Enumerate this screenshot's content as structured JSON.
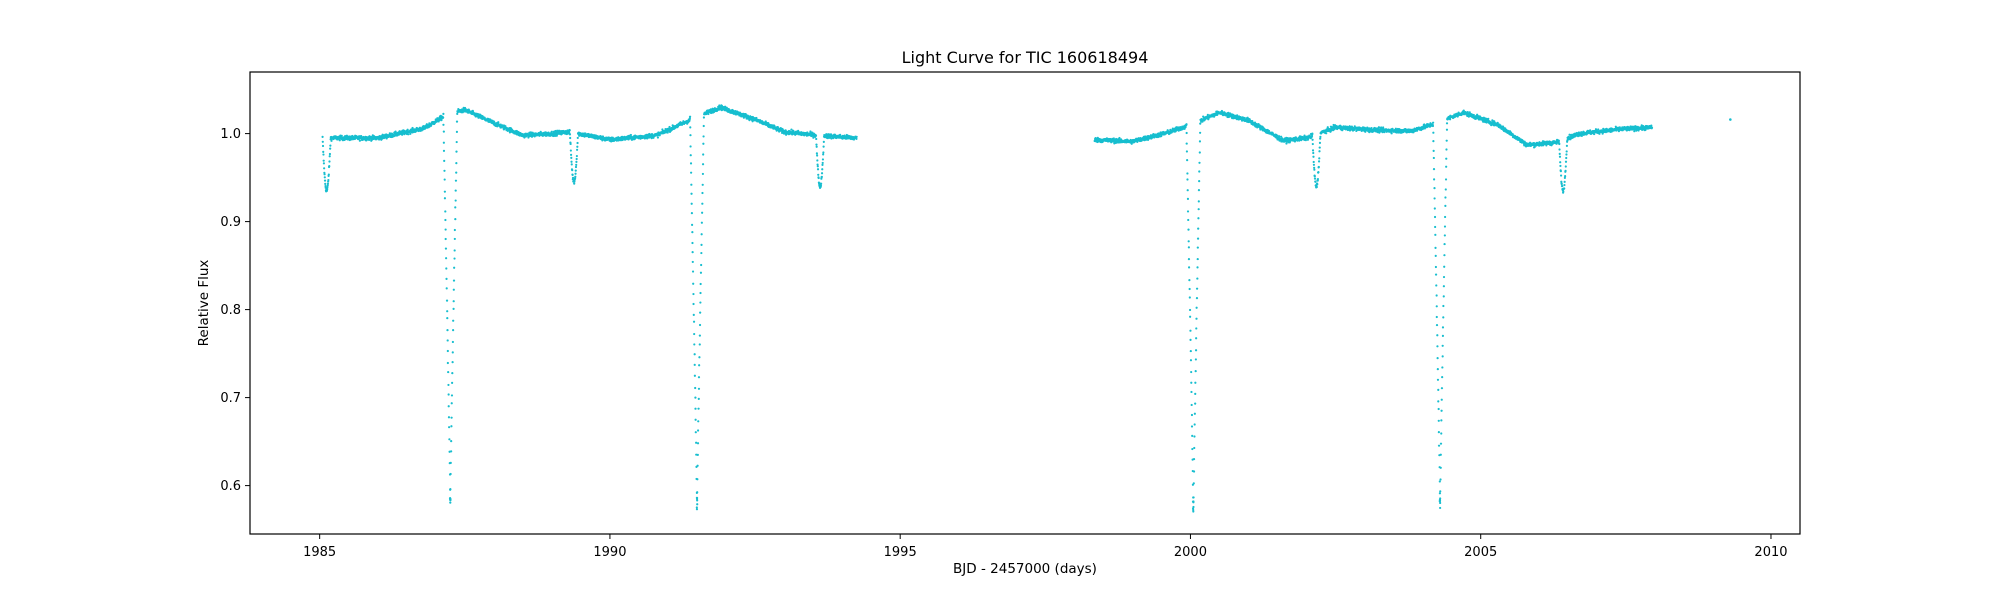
{
  "chart_data": {
    "type": "scatter",
    "title": "Light Curve for TIC 160618494",
    "xlabel": "BJD - 2457000 (days)",
    "ylabel": "Relative Flux",
    "xlim": [
      1983.8,
      2010.5
    ],
    "ylim": [
      0.545,
      1.07
    ],
    "xticks": [
      1985,
      1990,
      1995,
      2000,
      2005,
      2010
    ],
    "yticks": [
      0.6,
      0.7,
      0.8,
      0.9,
      1.0
    ],
    "xtick_labels": [
      "1985",
      "1990",
      "1995",
      "2000",
      "2005",
      "2010"
    ],
    "ytick_labels": [
      "0.6",
      "0.7",
      "0.8",
      "0.9",
      "1.0"
    ],
    "grid": false,
    "marker_color": "#17becf",
    "series": [
      {
        "segments": [
          {
            "x_start": 1985.05,
            "x_end": 1994.25
          },
          {
            "x_start": 1998.35,
            "x_end": 2007.95
          }
        ],
        "baseline_trend": [
          [
            1985.05,
            0.995
          ],
          [
            1986.0,
            0.995
          ],
          [
            1986.8,
            1.006
          ],
          [
            1987.2,
            1.022
          ],
          [
            1987.5,
            1.027
          ],
          [
            1988.0,
            1.012
          ],
          [
            1988.5,
            0.998
          ],
          [
            1989.0,
            1.0
          ],
          [
            1989.3,
            1.002
          ],
          [
            1990.0,
            0.993
          ],
          [
            1990.8,
            0.998
          ],
          [
            1991.4,
            1.016
          ],
          [
            1991.9,
            1.03
          ],
          [
            1992.5,
            1.016
          ],
          [
            1993.0,
            1.002
          ],
          [
            1993.6,
            0.998
          ],
          [
            1994.25,
            0.995
          ],
          [
            1998.35,
            0.993
          ],
          [
            1999.0,
            0.991
          ],
          [
            1999.6,
            1.001
          ],
          [
            2000.0,
            1.01
          ],
          [
            2000.5,
            1.024
          ],
          [
            2001.0,
            1.015
          ],
          [
            2001.6,
            0.992
          ],
          [
            2002.0,
            0.995
          ],
          [
            2002.5,
            1.007
          ],
          [
            2003.2,
            1.004
          ],
          [
            2003.8,
            1.003
          ],
          [
            2004.2,
            1.011
          ],
          [
            2004.7,
            1.024
          ],
          [
            2005.3,
            1.01
          ],
          [
            2005.8,
            0.987
          ],
          [
            2006.3,
            0.99
          ],
          [
            2006.7,
            1.0
          ],
          [
            2007.4,
            1.005
          ],
          [
            2007.95,
            1.007
          ]
        ],
        "primary_eclipses": [
          {
            "x": 1987.25,
            "min_flux": 0.58
          },
          {
            "x": 1991.5,
            "min_flux": 0.575
          },
          {
            "x": 2000.05,
            "min_flux": 0.57
          },
          {
            "x": 2004.3,
            "min_flux": 0.575
          }
        ],
        "secondary_eclipses": [
          {
            "x": 1985.12,
            "min_flux": 0.935
          },
          {
            "x": 1989.38,
            "min_flux": 0.945
          },
          {
            "x": 1993.62,
            "min_flux": 0.94
          },
          {
            "x": 2002.17,
            "min_flux": 0.94
          },
          {
            "x": 2006.42,
            "min_flux": 0.935
          }
        ],
        "isolated_points": [
          {
            "x": 2009.3,
            "y": 1.016
          }
        ]
      }
    ]
  }
}
